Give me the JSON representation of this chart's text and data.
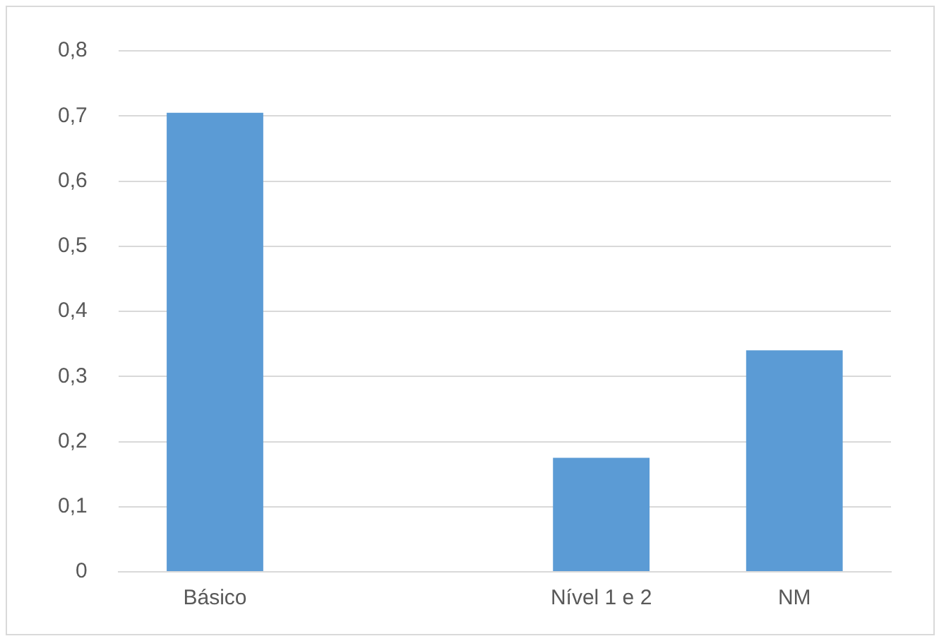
{
  "chart_data": {
    "type": "bar",
    "categories": [
      "Básico",
      null,
      "Nível 1 e 2",
      "NM"
    ],
    "values": [
      0.705,
      0,
      0.175,
      0.34
    ],
    "color": "#5b9bd5",
    "ylim": [
      0,
      0.8
    ],
    "yticks": [
      0,
      {
        "value": 0.1,
        "label": "0,1"
      },
      {
        "value": 0.2,
        "label": "0,2"
      },
      {
        "value": 0.3,
        "label": "0,3"
      },
      {
        "value": 0.4,
        "label": "0,4"
      },
      {
        "value": 0.5,
        "label": "0,5"
      },
      {
        "value": 0.6,
        "label": "0,6"
      },
      {
        "value": 0.7,
        "label": "0,7"
      },
      {
        "value": 0.8,
        "label": "0,8"
      }
    ],
    "grid": "y",
    "legend": false
  }
}
